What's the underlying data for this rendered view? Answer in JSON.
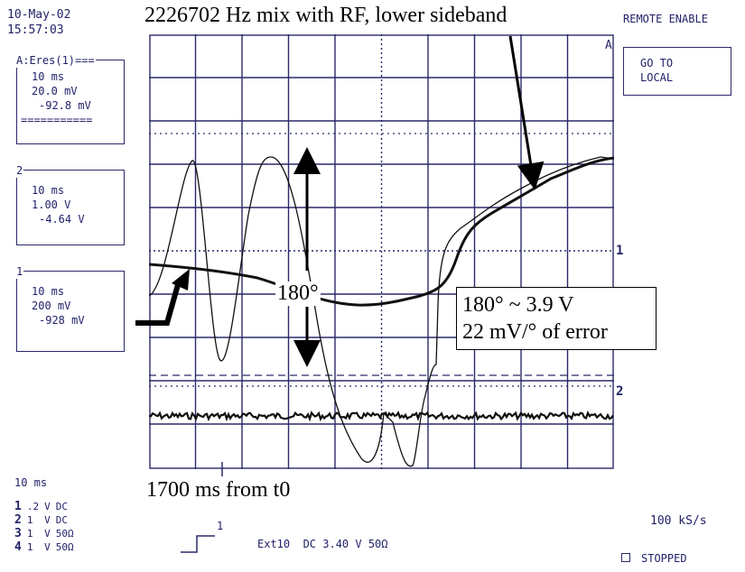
{
  "header": {
    "date": "10-May-02",
    "time": "15:57:03",
    "title": "2226702 Hz mix with RF, lower sideband",
    "remote": "REMOTE ENABLE"
  },
  "softkey": {
    "line1": "GO TO",
    "line2": "LOCAL"
  },
  "channels": [
    {
      "tag": "A:Eres(1)===",
      "timebase": "10 ms",
      "scale": "20.0 mV",
      "offset": "-92.8 mV",
      "separator": "==========="
    },
    {
      "tag": "2",
      "timebase": "10 ms",
      "scale": "1.00 V",
      "offset": "-4.64 V"
    },
    {
      "tag": "1",
      "timebase": "10 ms",
      "scale": "200 mV",
      "offset": "-928 mV"
    }
  ],
  "screen_markers": {
    "a": "A",
    "ch1": "1",
    "ch2": "2"
  },
  "annotations": {
    "deg180": "180°",
    "box_line1": "180° ~ 3.9 V",
    "box_line2": "22 mV/° of error",
    "from_t0": "1700 ms from t0"
  },
  "footer": {
    "timebase": "10 ms",
    "rows": [
      {
        "ch": "1",
        "val": ".2",
        "unit": "V",
        "cpl": "DC"
      },
      {
        "ch": "2",
        "val": "1",
        "unit": "V",
        "cpl": "DC"
      },
      {
        "ch": "3",
        "val": "1",
        "unit": "V",
        "cpl": "50Ω"
      },
      {
        "ch": "4",
        "val": "1",
        "unit": "V",
        "cpl": "50Ω"
      }
    ],
    "trigger": "Ext10  DC 3.40 V 50Ω",
    "trig_marker": "1",
    "samplerate": "100 kS/s",
    "status": "STOPPED"
  }
}
